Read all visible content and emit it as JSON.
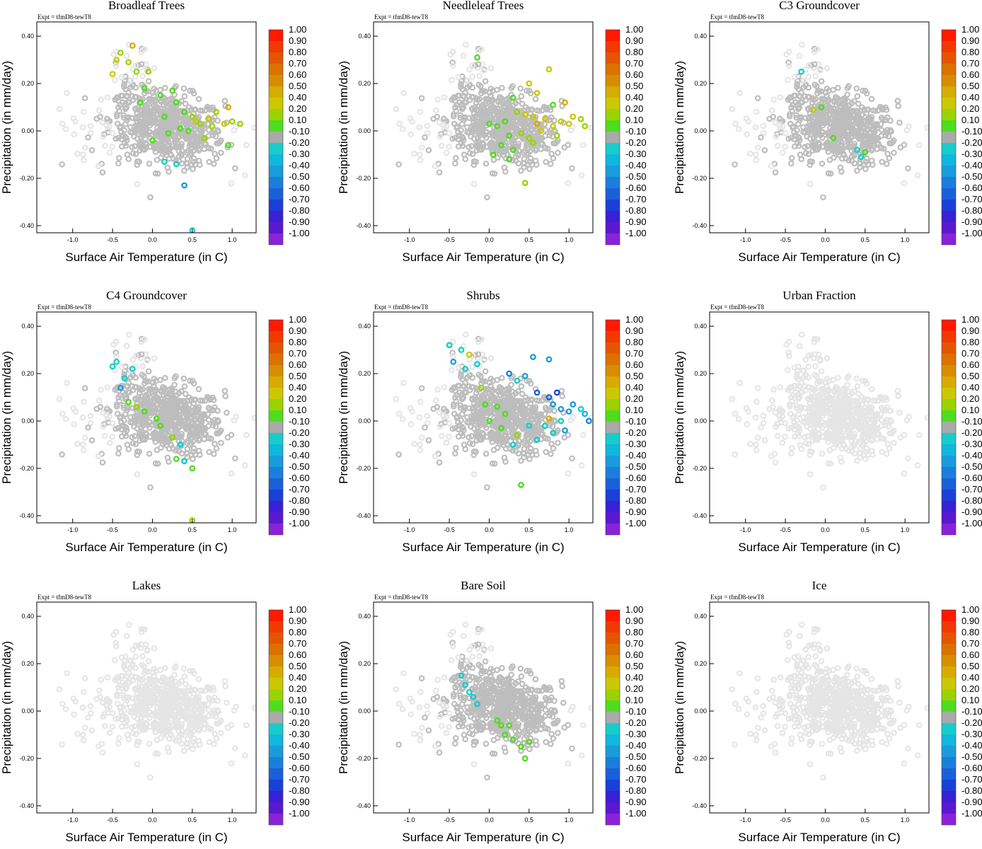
{
  "chart_data": {
    "type": "scatter",
    "layout": "3x3 grid of scatter panels",
    "expt_label": "Expt = tfmD8-tewT8",
    "xlabel": "Surface Air Temperature (in C)",
    "ylabel": "Precipitation (in mm/day)",
    "xlim": [
      -1.45,
      1.3
    ],
    "ylim": [
      -0.43,
      0.46
    ],
    "xticks": [
      "-1.0",
      "-0.5",
      "0.0",
      "0.5",
      "1.0"
    ],
    "yticks": [
      "0.40",
      "0.20",
      "0.00",
      "-0.20",
      "-0.40"
    ],
    "colorbar": {
      "labels": [
        "1.00",
        "0.90",
        "0.80",
        "0.70",
        "0.60",
        "0.50",
        "0.40",
        "0.20",
        "0.10",
        "-0.10",
        "-0.20",
        "-0.30",
        "-0.40",
        "-0.50",
        "-0.60",
        "-0.70",
        "-0.80",
        "-0.90",
        "-1.00"
      ],
      "colors": [
        "#ff1a00",
        "#f23800",
        "#e55500",
        "#db7200",
        "#d88d00",
        "#d8ab00",
        "#ccc800",
        "#9ad400",
        "#50dc20",
        "#aaaaaa",
        "#18cccc",
        "#10b8dc",
        "#1a9cdc",
        "#1a7fdc",
        "#1a60d8",
        "#1a40d8",
        "#3a20d4",
        "#5a18d0",
        "#8a22d8"
      ]
    },
    "background_gray": "#bdbdbd",
    "background_light": "#e5e5e5",
    "panels": [
      {
        "title": "Broadleaf Trees",
        "highlights": [
          {
            "x": -0.5,
            "y": 0.24,
            "c": "#ccc800"
          },
          {
            "x": -0.45,
            "y": 0.3,
            "c": "#ccc800"
          },
          {
            "x": -0.4,
            "y": 0.33,
            "c": "#9ad400"
          },
          {
            "x": -0.3,
            "y": 0.29,
            "c": "#9ad400"
          },
          {
            "x": -0.25,
            "y": 0.36,
            "c": "#d8ab00"
          },
          {
            "x": -0.2,
            "y": 0.25,
            "c": "#9ad400"
          },
          {
            "x": -0.1,
            "y": 0.18,
            "c": "#50dc20"
          },
          {
            "x": -0.05,
            "y": 0.25,
            "c": "#9ad400"
          },
          {
            "x": 0.1,
            "y": 0.15,
            "c": "#50dc20"
          },
          {
            "x": 0.25,
            "y": 0.17,
            "c": "#50dc20"
          },
          {
            "x": 0.3,
            "y": 0.12,
            "c": "#50dc20"
          },
          {
            "x": 0.4,
            "y": 0.08,
            "c": "#50dc20"
          },
          {
            "x": 0.5,
            "y": 0.06,
            "c": "#9ad400"
          },
          {
            "x": 0.55,
            "y": 0.04,
            "c": "#ccc800"
          },
          {
            "x": 0.6,
            "y": 0.03,
            "c": "#9ad400"
          },
          {
            "x": 0.7,
            "y": 0.05,
            "c": "#ccc800"
          },
          {
            "x": 0.75,
            "y": 0.02,
            "c": "#9ad400"
          },
          {
            "x": 0.8,
            "y": 0.08,
            "c": "#9ad400"
          },
          {
            "x": 0.9,
            "y": 0.03,
            "c": "#ccc800"
          },
          {
            "x": 0.95,
            "y": 0.1,
            "c": "#d8ab00"
          },
          {
            "x": 1.0,
            "y": 0.04,
            "c": "#9ad400"
          },
          {
            "x": 1.1,
            "y": 0.03,
            "c": "#9ad400"
          },
          {
            "x": 0.45,
            "y": 0.0,
            "c": "#50dc20"
          },
          {
            "x": 0.2,
            "y": -0.01,
            "c": "#50dc20"
          },
          {
            "x": 0.0,
            "y": -0.04,
            "c": "#50dc20"
          },
          {
            "x": 0.15,
            "y": 0.06,
            "c": "#50dc20"
          },
          {
            "x": 0.35,
            "y": 0.01,
            "c": "#50dc20"
          },
          {
            "x": 0.65,
            "y": -0.03,
            "c": "#9ad400"
          },
          {
            "x": 0.95,
            "y": -0.06,
            "c": "#50dc20"
          },
          {
            "x": -0.15,
            "y": 0.12,
            "c": "#50dc20"
          },
          {
            "x": 0.3,
            "y": -0.14,
            "c": "#18cccc"
          },
          {
            "x": 0.4,
            "y": -0.23,
            "c": "#1a9cdc"
          },
          {
            "x": 0.5,
            "y": -0.42,
            "c": "#18cccc"
          },
          {
            "x": 0.15,
            "y": -0.13,
            "c": "#18cccc"
          }
        ]
      },
      {
        "title": "Needleleaf Trees",
        "highlights": [
          {
            "x": -0.15,
            "y": 0.31,
            "c": "#50dc20"
          },
          {
            "x": 0.75,
            "y": 0.26,
            "c": "#ccc800"
          },
          {
            "x": 0.5,
            "y": 0.2,
            "c": "#ccc800"
          },
          {
            "x": 0.6,
            "y": 0.16,
            "c": "#ccc800"
          },
          {
            "x": 0.95,
            "y": 0.12,
            "c": "#d8ab00"
          },
          {
            "x": 0.8,
            "y": 0.11,
            "c": "#50dc20"
          },
          {
            "x": 0.3,
            "y": 0.14,
            "c": "#50dc20"
          },
          {
            "x": 0.35,
            "y": 0.08,
            "c": "#9ad400"
          },
          {
            "x": 0.45,
            "y": 0.07,
            "c": "#ccc800"
          },
          {
            "x": 0.55,
            "y": 0.06,
            "c": "#ccc800"
          },
          {
            "x": 0.6,
            "y": 0.03,
            "c": "#d8ab00"
          },
          {
            "x": 0.7,
            "y": 0.05,
            "c": "#ccc800"
          },
          {
            "x": 0.8,
            "y": 0.02,
            "c": "#ccc800"
          },
          {
            "x": 0.9,
            "y": 0.04,
            "c": "#ccc800"
          },
          {
            "x": 1.0,
            "y": 0.03,
            "c": "#ccc800"
          },
          {
            "x": 1.05,
            "y": 0.06,
            "c": "#ccc800"
          },
          {
            "x": 1.15,
            "y": 0.05,
            "c": "#9ad400"
          },
          {
            "x": 1.2,
            "y": 0.02,
            "c": "#9ad400"
          },
          {
            "x": 0.2,
            "y": 0.04,
            "c": "#50dc20"
          },
          {
            "x": 0.1,
            "y": 0.02,
            "c": "#50dc20"
          },
          {
            "x": 0.0,
            "y": 0.03,
            "c": "#50dc20"
          },
          {
            "x": 0.25,
            "y": -0.02,
            "c": "#50dc20"
          },
          {
            "x": 0.4,
            "y": -0.01,
            "c": "#9ad400"
          },
          {
            "x": 0.5,
            "y": -0.03,
            "c": "#9ad400"
          },
          {
            "x": 0.65,
            "y": 0.0,
            "c": "#ccc800"
          },
          {
            "x": 0.85,
            "y": -0.02,
            "c": "#9ad400"
          },
          {
            "x": 0.15,
            "y": -0.06,
            "c": "#50dc20"
          },
          {
            "x": 0.3,
            "y": -0.08,
            "c": "#50dc20"
          },
          {
            "x": 0.55,
            "y": -0.05,
            "c": "#9ad400"
          },
          {
            "x": 0.05,
            "y": -0.1,
            "c": "#50dc20"
          },
          {
            "x": 0.25,
            "y": -0.12,
            "c": "#50dc20"
          },
          {
            "x": 0.45,
            "y": -0.22,
            "c": "#9ad400"
          }
        ]
      },
      {
        "title": "C3 Groundcover",
        "highlights": [
          {
            "x": -0.15,
            "y": 0.09,
            "c": "#ccc800"
          },
          {
            "x": -0.05,
            "y": 0.1,
            "c": "#50dc20"
          },
          {
            "x": -0.3,
            "y": 0.25,
            "c": "#18cccc"
          },
          {
            "x": 0.1,
            "y": -0.03,
            "c": "#50dc20"
          },
          {
            "x": 0.4,
            "y": -0.08,
            "c": "#18cccc"
          },
          {
            "x": 0.45,
            "y": -0.11,
            "c": "#18cccc"
          },
          {
            "x": 0.5,
            "y": -0.09,
            "c": "#50dc20"
          }
        ]
      },
      {
        "title": "C4 Groundcover",
        "highlights": [
          {
            "x": -0.5,
            "y": 0.23,
            "c": "#18cccc"
          },
          {
            "x": -0.45,
            "y": 0.25,
            "c": "#18cccc"
          },
          {
            "x": -0.4,
            "y": 0.14,
            "c": "#1a9cdc"
          },
          {
            "x": -0.35,
            "y": 0.18,
            "c": "#18cccc"
          },
          {
            "x": -0.25,
            "y": 0.22,
            "c": "#18cccc"
          },
          {
            "x": -0.3,
            "y": 0.08,
            "c": "#50dc20"
          },
          {
            "x": -0.2,
            "y": 0.06,
            "c": "#9ad400"
          },
          {
            "x": -0.1,
            "y": 0.04,
            "c": "#50dc20"
          },
          {
            "x": 0.05,
            "y": 0.01,
            "c": "#50dc20"
          },
          {
            "x": 0.1,
            "y": -0.02,
            "c": "#50dc20"
          },
          {
            "x": 0.25,
            "y": -0.07,
            "c": "#9ad400"
          },
          {
            "x": 0.35,
            "y": -0.1,
            "c": "#18cccc"
          },
          {
            "x": 0.4,
            "y": -0.17,
            "c": "#18cccc"
          },
          {
            "x": 0.5,
            "y": -0.2,
            "c": "#50dc20"
          },
          {
            "x": 0.3,
            "y": -0.16,
            "c": "#50dc20"
          },
          {
            "x": 0.5,
            "y": -0.42,
            "c": "#9ad400"
          }
        ]
      },
      {
        "title": "Shrubs",
        "highlights": [
          {
            "x": -0.5,
            "y": 0.32,
            "c": "#18cccc"
          },
          {
            "x": -0.45,
            "y": 0.25,
            "c": "#1a9cdc"
          },
          {
            "x": -0.35,
            "y": 0.3,
            "c": "#18cccc"
          },
          {
            "x": -0.3,
            "y": 0.22,
            "c": "#18cccc"
          },
          {
            "x": -0.25,
            "y": 0.28,
            "c": "#ccc800"
          },
          {
            "x": -0.15,
            "y": 0.24,
            "c": "#18cccc"
          },
          {
            "x": 0.55,
            "y": 0.27,
            "c": "#1a9cdc"
          },
          {
            "x": 0.75,
            "y": 0.26,
            "c": "#1a9cdc"
          },
          {
            "x": 0.25,
            "y": 0.2,
            "c": "#1a7fdc"
          },
          {
            "x": 0.35,
            "y": 0.17,
            "c": "#18cccc"
          },
          {
            "x": 0.45,
            "y": 0.19,
            "c": "#1a9cdc"
          },
          {
            "x": 0.6,
            "y": 0.12,
            "c": "#1a60d8"
          },
          {
            "x": 0.75,
            "y": 0.1,
            "c": "#1a60d8"
          },
          {
            "x": 0.85,
            "y": 0.12,
            "c": "#1a40d8"
          },
          {
            "x": 0.8,
            "y": 0.07,
            "c": "#1a9cdc"
          },
          {
            "x": 0.9,
            "y": 0.05,
            "c": "#1a9cdc"
          },
          {
            "x": 1.0,
            "y": 0.04,
            "c": "#1a9cdc"
          },
          {
            "x": 1.05,
            "y": 0.07,
            "c": "#1a9cdc"
          },
          {
            "x": 1.15,
            "y": 0.05,
            "c": "#18cccc"
          },
          {
            "x": 1.2,
            "y": 0.03,
            "c": "#10b8dc"
          },
          {
            "x": 1.25,
            "y": 0.0,
            "c": "#1a7fdc"
          },
          {
            "x": 0.9,
            "y": 0.0,
            "c": "#18cccc"
          },
          {
            "x": 0.7,
            "y": -0.02,
            "c": "#18cccc"
          },
          {
            "x": 0.75,
            "y": 0.01,
            "c": "#d8ab00"
          },
          {
            "x": 0.8,
            "y": -0.05,
            "c": "#18cccc"
          },
          {
            "x": 0.95,
            "y": -0.04,
            "c": "#1a9cdc"
          },
          {
            "x": 0.5,
            "y": -0.02,
            "c": "#18cccc"
          },
          {
            "x": -0.1,
            "y": 0.14,
            "c": "#9ad400"
          },
          {
            "x": -0.05,
            "y": 0.07,
            "c": "#50dc20"
          },
          {
            "x": 0.1,
            "y": 0.06,
            "c": "#50dc20"
          },
          {
            "x": 0.2,
            "y": 0.03,
            "c": "#50dc20"
          },
          {
            "x": 0.0,
            "y": 0.0,
            "c": "#50dc20"
          },
          {
            "x": 0.15,
            "y": -0.03,
            "c": "#50dc20"
          },
          {
            "x": 0.35,
            "y": -0.06,
            "c": "#9ad400"
          },
          {
            "x": 0.3,
            "y": -0.1,
            "c": "#18cccc"
          },
          {
            "x": 0.4,
            "y": -0.27,
            "c": "#50dc20"
          },
          {
            "x": 0.6,
            "y": -0.08,
            "c": "#18cccc"
          }
        ]
      },
      {
        "title": "Urban Fraction",
        "highlights": []
      },
      {
        "title": "Lakes",
        "highlights": []
      },
      {
        "title": "Bare Soil",
        "highlights": [
          {
            "x": -0.35,
            "y": 0.15,
            "c": "#18cccc"
          },
          {
            "x": -0.3,
            "y": 0.11,
            "c": "#18cccc"
          },
          {
            "x": -0.25,
            "y": 0.08,
            "c": "#18cccc"
          },
          {
            "x": -0.2,
            "y": 0.06,
            "c": "#18cccc"
          },
          {
            "x": -0.15,
            "y": 0.03,
            "c": "#18cccc"
          },
          {
            "x": 0.1,
            "y": -0.04,
            "c": "#50dc20"
          },
          {
            "x": 0.15,
            "y": -0.06,
            "c": "#50dc20"
          },
          {
            "x": 0.25,
            "y": -0.06,
            "c": "#50dc20"
          },
          {
            "x": 0.2,
            "y": -0.1,
            "c": "#50dc20"
          },
          {
            "x": 0.3,
            "y": -0.12,
            "c": "#50dc20"
          },
          {
            "x": 0.4,
            "y": -0.15,
            "c": "#50dc20"
          },
          {
            "x": 0.45,
            "y": -0.2,
            "c": "#50dc20"
          },
          {
            "x": 0.5,
            "y": -0.13,
            "c": "#50dc20"
          }
        ]
      },
      {
        "title": "Ice",
        "highlights": []
      }
    ]
  }
}
